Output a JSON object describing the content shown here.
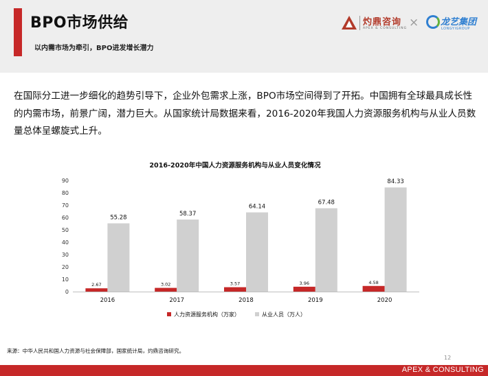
{
  "header": {
    "title": "BPO市场供给",
    "subtitle": "以内需市场为牵引，BPO进发增长潜力",
    "logo_apex_cn": "灼鼎咨询",
    "logo_apex_en": "APEX & CONSULTING",
    "logo_cross": "×",
    "logo_longyi_cn": "龙艺集团",
    "logo_longyi_en": "LONGYIGROUP"
  },
  "body": {
    "paragraph": "在国际分工进一步细化的趋势引导下，企业外包需求上涨，BPO市场空间得到了开拓。中国拥有全球最具成长性的内需市场，前景广阔，潜力巨大。从国家统计局数据来看，2016-2020年我国人力资源服务机构与从业人员数量总体呈螺旋式上升。"
  },
  "chart_data": {
    "type": "bar",
    "title": "2016-2020年中国人力资源服务机构与从业人员变化情况",
    "categories": [
      "2016",
      "2017",
      "2018",
      "2019",
      "2020"
    ],
    "series": [
      {
        "name": "人力资源服务机构（万家）",
        "values": [
          2.67,
          3.02,
          3.57,
          3.96,
          4.58
        ],
        "color": "#c62828"
      },
      {
        "name": "从业人员（万人）",
        "values": [
          55.28,
          58.37,
          64.14,
          67.48,
          84.33
        ],
        "color": "#d0d0d0"
      }
    ],
    "ylim": [
      0,
      90
    ],
    "yticks": [
      "0",
      "10",
      "20",
      "30",
      "40",
      "50",
      "60",
      "70",
      "80",
      "90"
    ],
    "grid": false,
    "legend_position": "bottom"
  },
  "footer": {
    "source": "来源：中华人民共和国人力资源与社会保障部，国家统计局，灼鼎咨询研究。",
    "page_number": "12",
    "brand": "APEX & CONSULTING"
  }
}
